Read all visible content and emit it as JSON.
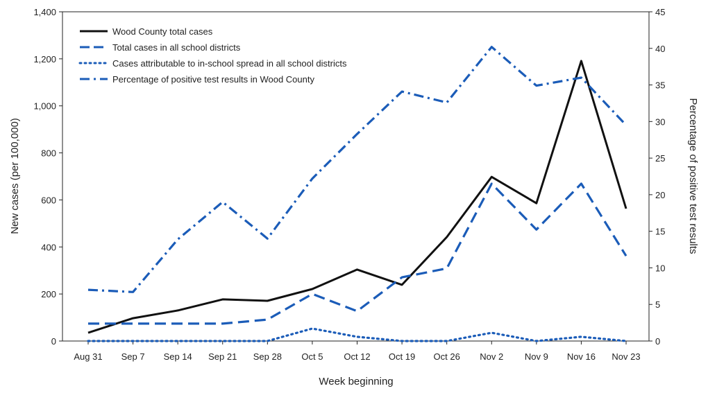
{
  "chart_data": {
    "type": "line",
    "xlabel": "Week beginning",
    "ylabel": "New cases (per 100,000)",
    "y2label": "Percentage of positive test results",
    "categories": [
      "Aug 31",
      "Sep 7",
      "Sep 14",
      "Sep 21",
      "Sep 28",
      "Oct 5",
      "Oct 12",
      "Oct 19",
      "Oct 26",
      "Nov 2",
      "Nov 9",
      "Nov 16",
      "Nov 23"
    ],
    "ylim": [
      0,
      1400
    ],
    "y2lim": [
      0,
      45
    ],
    "yticks": [
      0,
      200,
      400,
      600,
      800,
      1000,
      1200,
      1400
    ],
    "y2ticks": [
      0,
      5,
      10,
      15,
      20,
      25,
      30,
      35,
      40,
      45
    ],
    "grid": false,
    "legend_position": "top-left",
    "series": [
      {
        "name": "Wood County total cases",
        "axis": "left",
        "style": "solid",
        "color": "#111111",
        "values": [
          35,
          97,
          130,
          177,
          171,
          221,
          304,
          239,
          442,
          698,
          586,
          1191,
          563
        ]
      },
      {
        "name": "Total cases in all school districts",
        "axis": "left",
        "style": "dashed",
        "color": "#1b5cb8",
        "values": [
          74,
          74,
          74,
          74,
          91,
          200,
          127,
          271,
          309,
          669,
          474,
          669,
          362
        ]
      },
      {
        "name": "Cases attributable to in-school spread in all school districts",
        "axis": "left",
        "style": "dotted",
        "color": "#1b5cb8",
        "values": [
          0,
          0,
          0,
          0,
          0,
          53,
          18,
          0,
          0,
          35,
          0,
          18,
          0
        ]
      },
      {
        "name": "Percentage of positive test results in Wood County",
        "axis": "right",
        "style": "dashdot",
        "color": "#1b5cb8",
        "values": [
          7.0,
          6.7,
          13.9,
          19.0,
          14.0,
          22.2,
          28.3,
          34.1,
          32.6,
          40.2,
          34.9,
          36.0,
          29.5
        ]
      }
    ]
  }
}
